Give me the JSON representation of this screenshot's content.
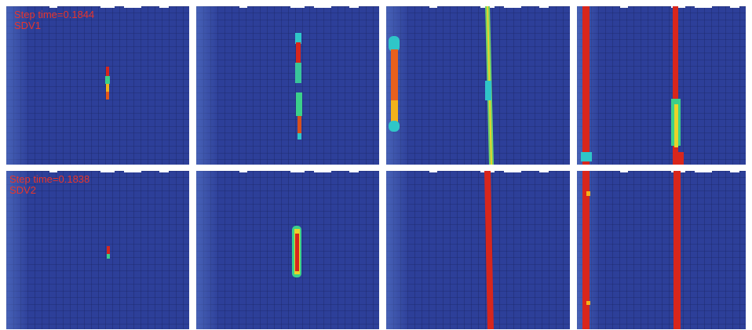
{
  "panels": [
    {
      "step_time": "Step time=0.1844",
      "variable": "SDV1"
    },
    {
      "step_time": "Step time=0.1838",
      "variable": "SDV2"
    }
  ]
}
